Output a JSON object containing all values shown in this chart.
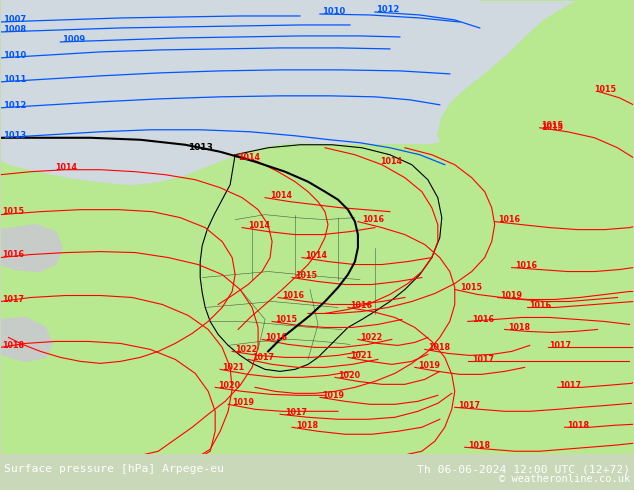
{
  "title_left": "Surface pressure [hPa] Arpege-eu",
  "title_right": "Th 06-06-2024 12:00 UTC (12+72)",
  "copyright": "© weatheronline.co.uk",
  "bg_color": "#c8d8b8",
  "sea_color": "#d0d8e0",
  "land_green": "#b8e890",
  "land_gray": "#c8d0c0",
  "footer_bg": "#000080",
  "blue_color": "#0055ff",
  "red_color": "#ff0000",
  "black_color": "#000000",
  "figsize": [
    6.34,
    4.9
  ],
  "dpi": 100
}
